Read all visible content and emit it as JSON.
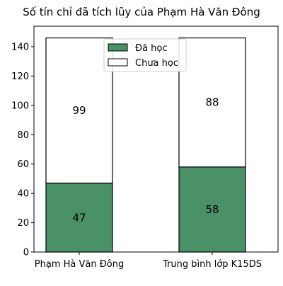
{
  "chart_data": {
    "type": "bar",
    "stacked": true,
    "title": "Số tín chỉ đã tích lũy của Phạm Hà Văn Đông",
    "xlabel": "",
    "ylabel": "",
    "categories": [
      "Phạm Hà Văn Đông",
      "Trung bình lớp K15DS"
    ],
    "series": [
      {
        "name": "Đã học",
        "values": [
          47,
          58
        ],
        "color": "#4a9168"
      },
      {
        "name": "Chưa học",
        "values": [
          99,
          88
        ],
        "color": "#ffffff"
      }
    ],
    "ylim": [
      0,
      154
    ],
    "yticks": [
      0,
      20,
      40,
      60,
      80,
      100,
      120,
      140
    ],
    "legend_position": "top-center",
    "grid": false,
    "edge_color": "#000000"
  }
}
